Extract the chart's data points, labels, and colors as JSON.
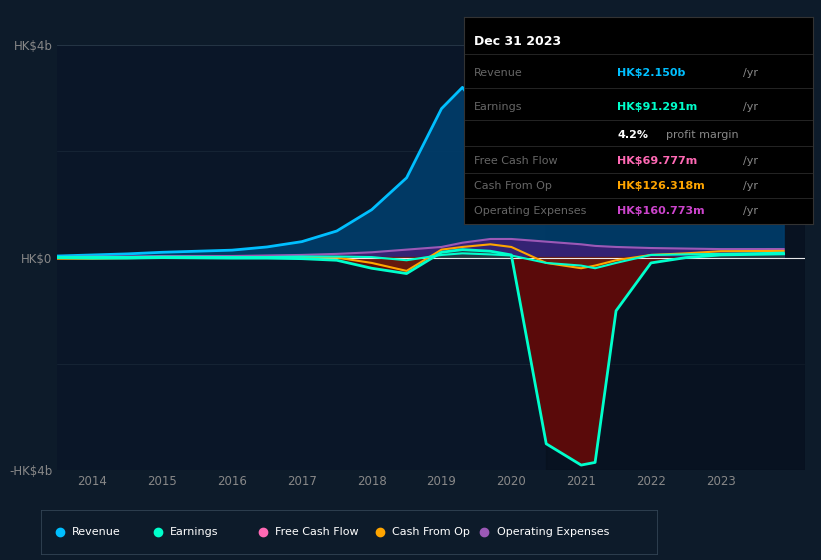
{
  "bg_color": "#0d1b2a",
  "plot_bg_color": "#0a1628",
  "years": [
    2013.5,
    2014,
    2014.5,
    2015,
    2016,
    2016.5,
    2017,
    2017.5,
    2018,
    2018.5,
    2019,
    2019.3,
    2019.7,
    2020,
    2020.5,
    2021,
    2021.2,
    2021.5,
    2022,
    2022.5,
    2023,
    2023.9
  ],
  "revenue": [
    0.03,
    0.05,
    0.07,
    0.1,
    0.14,
    0.2,
    0.3,
    0.5,
    0.9,
    1.5,
    2.8,
    3.2,
    2.5,
    1.8,
    1.4,
    1.1,
    1.15,
    1.3,
    1.5,
    1.7,
    2.0,
    2.15
  ],
  "earnings": [
    0.01,
    0.015,
    0.01,
    0.015,
    0.01,
    0.01,
    0.02,
    0.02,
    0.01,
    -0.05,
    0.05,
    0.08,
    0.06,
    0.04,
    -0.1,
    -0.15,
    -0.2,
    -0.1,
    0.05,
    0.06,
    0.07,
    0.091
  ],
  "free_cash_flow": [
    0.0,
    -0.01,
    -0.01,
    0.0,
    -0.01,
    -0.01,
    -0.02,
    -0.05,
    -0.2,
    -0.3,
    0.1,
    0.15,
    0.12,
    0.05,
    -3.5,
    -3.9,
    -3.85,
    -1.0,
    -0.1,
    0.0,
    0.05,
    0.07
  ],
  "cash_from_op": [
    -0.02,
    -0.02,
    -0.01,
    0.0,
    0.01,
    0.01,
    0.01,
    0.0,
    -0.1,
    -0.25,
    0.15,
    0.2,
    0.25,
    0.2,
    -0.1,
    -0.2,
    -0.15,
    -0.05,
    0.05,
    0.08,
    0.12,
    0.126
  ],
  "operating_expenses": [
    0.01,
    0.02,
    0.02,
    0.03,
    0.03,
    0.04,
    0.05,
    0.07,
    0.1,
    0.15,
    0.2,
    0.28,
    0.35,
    0.35,
    0.3,
    0.25,
    0.22,
    0.2,
    0.18,
    0.17,
    0.16,
    0.161
  ],
  "revenue_color": "#00bfff",
  "earnings_color": "#00ffcc",
  "free_cash_flow_color": "#ff69b4",
  "cash_from_op_color": "#ffa500",
  "operating_expenses_color": "#9b59b6",
  "revenue_fill_color": "#003d6b",
  "negative_fill_color": "#5a0a0a",
  "op_fill_color": "#4b1a7a",
  "xlim": [
    2013.5,
    2024.2
  ],
  "ylim": [
    -4.0,
    4.0
  ],
  "yticks": [
    -4,
    0,
    4
  ],
  "ytick_labels": [
    "-HK$4b",
    "HK$0",
    "HK$4b"
  ],
  "xticks": [
    2014,
    2015,
    2016,
    2017,
    2018,
    2019,
    2020,
    2021,
    2022,
    2023
  ],
  "info_box": {
    "date": "Dec 31 2023",
    "revenue_label": "Revenue",
    "revenue_value": "HK$2.150b",
    "revenue_color": "#00bfff",
    "earnings_label": "Earnings",
    "earnings_value": "HK$91.291m",
    "earnings_color": "#00ffcc",
    "margin_bold": "4.2%",
    "fcf_label": "Free Cash Flow",
    "fcf_value": "HK$69.777m",
    "fcf_color": "#ff69b4",
    "cfo_label": "Cash From Op",
    "cfo_value": "HK$126.318m",
    "cfo_color": "#ffa500",
    "opex_label": "Operating Expenses",
    "opex_value": "HK$160.773m",
    "opex_color": "#cc44cc"
  },
  "legend": [
    {
      "label": "Revenue",
      "color": "#00bfff"
    },
    {
      "label": "Earnings",
      "color": "#00ffcc"
    },
    {
      "label": "Free Cash Flow",
      "color": "#ff69b4"
    },
    {
      "label": "Cash From Op",
      "color": "#ffa500"
    },
    {
      "label": "Operating Expenses",
      "color": "#9b59b6"
    }
  ]
}
